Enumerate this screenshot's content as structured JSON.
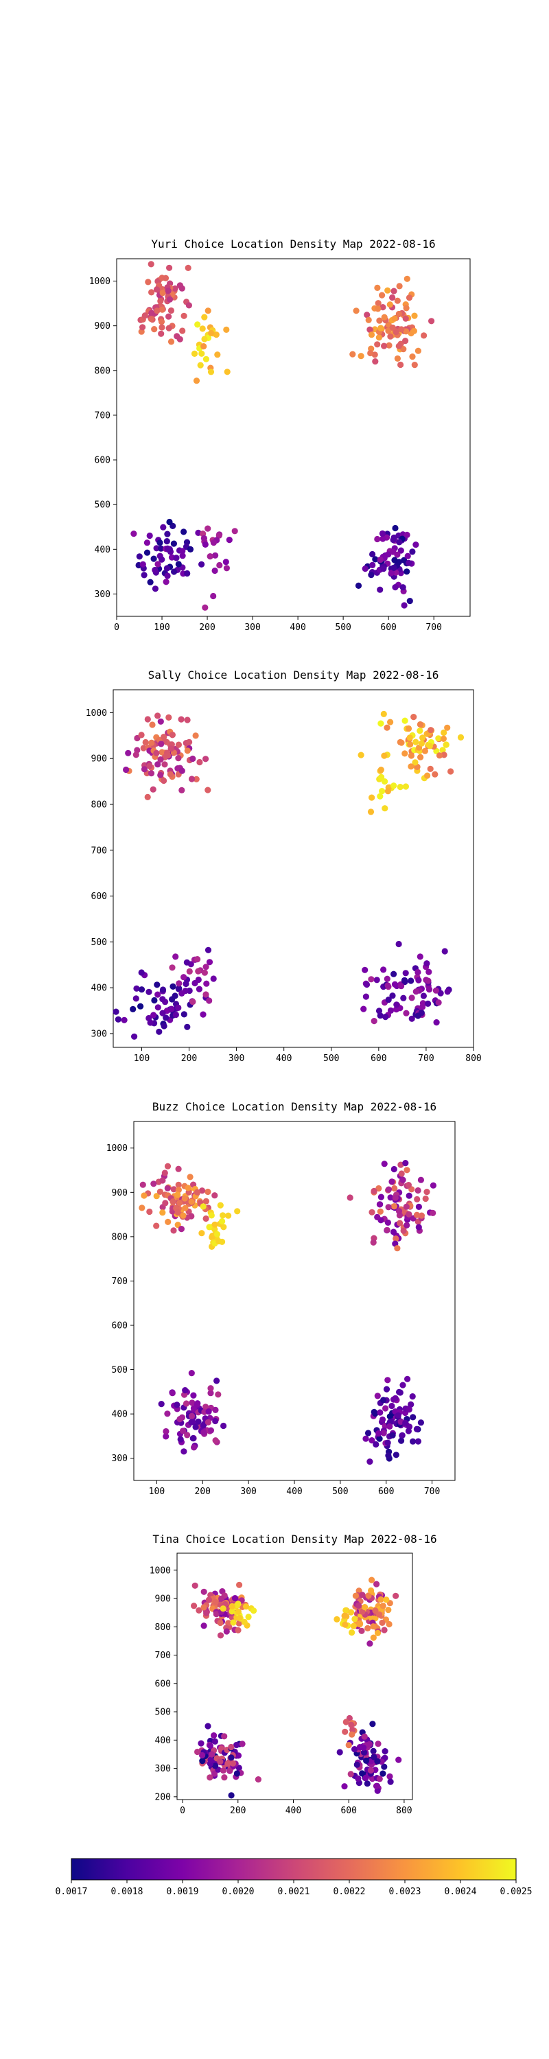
{
  "colorscale": {
    "name": "plasma",
    "min": 0.0017,
    "max": 0.0025,
    "tick_labels": [
      "0.0017",
      "0.0018",
      "0.0019",
      "0.0020",
      "0.0021",
      "0.0022",
      "0.0023",
      "0.0024",
      "0.0025"
    ]
  },
  "chart_data": [
    {
      "type": "scatter",
      "title": "Yuri Choice Location Density Map 2022-08-16",
      "xlabel": "",
      "ylabel": "",
      "xlim": [
        0,
        780
      ],
      "ylim": [
        250,
        1050
      ],
      "xticks": [
        0,
        100,
        200,
        300,
        400,
        500,
        600,
        700
      ],
      "yticks": [
        300,
        400,
        500,
        600,
        700,
        800,
        900,
        1000
      ],
      "grid": false,
      "seed": 11,
      "clusters": [
        {
          "cx": 100,
          "cy": 950,
          "sx": 25,
          "sy": 40,
          "n": 70,
          "c0": 0.00205,
          "c1": 0.00225
        },
        {
          "cx": 210,
          "cy": 870,
          "sx": 25,
          "sy": 45,
          "n": 25,
          "c0": 0.0023,
          "c1": 0.0025
        },
        {
          "cx": 615,
          "cy": 905,
          "sx": 35,
          "sy": 40,
          "n": 85,
          "c0": 0.0021,
          "c1": 0.00235
        },
        {
          "cx": 110,
          "cy": 375,
          "sx": 30,
          "sy": 35,
          "n": 55,
          "c0": 0.0017,
          "c1": 0.00195
        },
        {
          "cx": 215,
          "cy": 390,
          "sx": 30,
          "sy": 40,
          "n": 20,
          "c0": 0.0019,
          "c1": 0.00205
        },
        {
          "cx": 610,
          "cy": 375,
          "sx": 30,
          "sy": 40,
          "n": 70,
          "c0": 0.0017,
          "c1": 0.00195
        }
      ]
    },
    {
      "type": "scatter",
      "title": "Sally Choice Location Density Map 2022-08-16",
      "xlabel": "",
      "ylabel": "",
      "xlim": [
        40,
        800
      ],
      "ylim": [
        270,
        1050
      ],
      "xticks": [
        100,
        200,
        300,
        400,
        500,
        600,
        700,
        800
      ],
      "yticks": [
        300,
        400,
        500,
        600,
        700,
        800,
        900,
        1000
      ],
      "grid": false,
      "seed": 23,
      "clusters": [
        {
          "cx": 150,
          "cy": 905,
          "sx": 35,
          "sy": 35,
          "n": 95,
          "c0": 0.00195,
          "c1": 0.00225
        },
        {
          "cx": 690,
          "cy": 925,
          "sx": 35,
          "sy": 35,
          "n": 70,
          "c0": 0.0022,
          "c1": 0.0025
        },
        {
          "cx": 610,
          "cy": 840,
          "sx": 20,
          "sy": 30,
          "n": 15,
          "c0": 0.00235,
          "c1": 0.0025
        },
        {
          "cx": 140,
          "cy": 360,
          "sx": 35,
          "sy": 30,
          "n": 50,
          "c0": 0.0017,
          "c1": 0.0019
        },
        {
          "cx": 210,
          "cy": 420,
          "sx": 25,
          "sy": 35,
          "n": 30,
          "c0": 0.0018,
          "c1": 0.00205
        },
        {
          "cx": 660,
          "cy": 385,
          "sx": 45,
          "sy": 40,
          "n": 80,
          "c0": 0.00175,
          "c1": 0.002
        }
      ]
    },
    {
      "type": "scatter",
      "title": "Buzz Choice Location Density Map 2022-08-16",
      "xlabel": "",
      "ylabel": "",
      "xlim": [
        50,
        750
      ],
      "ylim": [
        250,
        1060
      ],
      "xticks": [
        100,
        200,
        300,
        400,
        500,
        600,
        700
      ],
      "yticks": [
        300,
        400,
        500,
        600,
        700,
        800,
        900,
        1000
      ],
      "grid": false,
      "seed": 37,
      "clusters": [
        {
          "cx": 155,
          "cy": 880,
          "sx": 35,
          "sy": 30,
          "n": 90,
          "c0": 0.002,
          "c1": 0.00235
        },
        {
          "cx": 230,
          "cy": 815,
          "sx": 15,
          "sy": 25,
          "n": 25,
          "c0": 0.0024,
          "c1": 0.0025
        },
        {
          "cx": 630,
          "cy": 870,
          "sx": 35,
          "sy": 45,
          "n": 90,
          "c0": 0.00185,
          "c1": 0.00225
        },
        {
          "cx": 185,
          "cy": 395,
          "sx": 30,
          "sy": 35,
          "n": 80,
          "c0": 0.0018,
          "c1": 0.00205
        },
        {
          "cx": 620,
          "cy": 390,
          "sx": 30,
          "sy": 40,
          "n": 85,
          "c0": 0.0017,
          "c1": 0.00195
        }
      ]
    },
    {
      "type": "scatter",
      "title": "Tina Choice Location Density Map 2022-08-16",
      "xlabel": "",
      "ylabel": "",
      "xlim": [
        -20,
        830
      ],
      "ylim": [
        190,
        1060
      ],
      "xticks": [
        0,
        200,
        400,
        600,
        800
      ],
      "yticks": [
        200,
        300,
        400,
        500,
        600,
        700,
        800,
        900,
        1000
      ],
      "grid": false,
      "seed": 53,
      "clusters": [
        {
          "cx": 140,
          "cy": 870,
          "sx": 45,
          "sy": 40,
          "n": 85,
          "c0": 0.0019,
          "c1": 0.0023
        },
        {
          "cx": 210,
          "cy": 860,
          "sx": 25,
          "sy": 25,
          "n": 20,
          "c0": 0.0024,
          "c1": 0.0025
        },
        {
          "cx": 680,
          "cy": 855,
          "sx": 40,
          "sy": 45,
          "n": 85,
          "c0": 0.00195,
          "c1": 0.0024
        },
        {
          "cx": 600,
          "cy": 815,
          "sx": 20,
          "sy": 25,
          "n": 12,
          "c0": 0.00235,
          "c1": 0.0025
        },
        {
          "cx": 150,
          "cy": 340,
          "sx": 45,
          "sy": 45,
          "n": 80,
          "c0": 0.0017,
          "c1": 0.00215
        },
        {
          "cx": 670,
          "cy": 320,
          "sx": 40,
          "sy": 50,
          "n": 80,
          "c0": 0.0017,
          "c1": 0.00205
        },
        {
          "cx": 610,
          "cy": 440,
          "sx": 15,
          "sy": 25,
          "n": 10,
          "c0": 0.0021,
          "c1": 0.00225
        }
      ]
    }
  ]
}
